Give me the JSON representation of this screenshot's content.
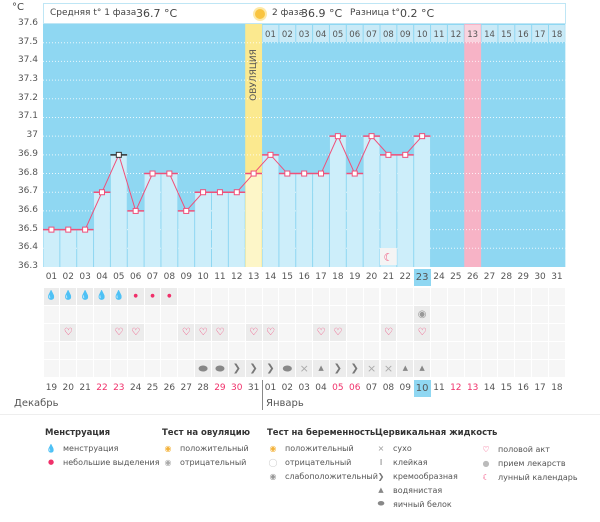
{
  "header": {
    "phase1_label": "Средняя t° 1 фаза",
    "phase1_value": "36.7 °C",
    "phase2_label": "2 фаза",
    "phase2_value": "36.9 °C",
    "diff_label": "Разница t°",
    "diff_value": "0.2 °C",
    "unit": "°C",
    "ovulation_label": "ОВУЛЯЦИЯ"
  },
  "colors": {
    "bg": "#8fd7f2",
    "bar": "#cdeefa",
    "line": "#f0507a",
    "ovulation": "#fbe98f",
    "ovulation_bar": "#fdf6c8",
    "next_cycle": "#f7b3c6",
    "weekend": "#f0306a"
  },
  "chart_data": {
    "type": "line",
    "title": "",
    "ylabel": "°C",
    "ylim": [
      36.3,
      37.6
    ],
    "yticks": [
      "37.6",
      "37.5",
      "37.4",
      "37.3",
      "37.2",
      "37.1",
      "37",
      "36.9",
      "36.8",
      "36.7",
      "36.6",
      "36.5",
      "36.4",
      "36.3"
    ],
    "cycle_days": [
      "01",
      "02",
      "03",
      "04",
      "05",
      "06",
      "07",
      "08",
      "09",
      "10",
      "11",
      "12",
      "13",
      "14",
      "15",
      "16",
      "17",
      "18",
      "19",
      "20",
      "21",
      "22",
      "23",
      "24",
      "25",
      "26",
      "27",
      "28",
      "29",
      "30",
      "31"
    ],
    "values": [
      36.5,
      36.5,
      36.5,
      36.7,
      36.9,
      36.6,
      36.8,
      36.8,
      36.6,
      36.7,
      36.7,
      36.7,
      36.8,
      36.9,
      36.8,
      36.8,
      36.8,
      37.0,
      36.8,
      37.0,
      36.9,
      36.9,
      37.0,
      null,
      null,
      null,
      null,
      null,
      null,
      null,
      null
    ],
    "selected_day": 5,
    "ovulation_day": 13,
    "today_day": 23,
    "moon_day": 21,
    "next_cycle_days": [
      "01",
      "02",
      "03",
      "04",
      "05",
      "06",
      "07",
      "08",
      "09",
      "10",
      "11",
      "12",
      "13",
      "14",
      "15",
      "16",
      "17",
      "18"
    ],
    "next_cycle_start_day": 14,
    "next_period_day": 26
  },
  "rows": {
    "menstruation": [
      "heavy",
      "heavy",
      "heavy",
      "heavy",
      "heavy",
      "light",
      "light",
      "light",
      null,
      null,
      null,
      null,
      null,
      null,
      null,
      null,
      null,
      null,
      null,
      null,
      null,
      null,
      null,
      null,
      null,
      null,
      null,
      null,
      null,
      null,
      null
    ],
    "tests": {
      "23": "pregnancy-weak"
    },
    "intercourse": [
      2,
      5,
      6,
      9,
      10,
      11,
      13,
      14,
      17,
      18,
      21,
      23
    ],
    "fluid": {
      "10": "egg",
      "11": "egg",
      "12": "creamy",
      "13": "creamy",
      "14": "creamy",
      "15": "egg",
      "16": "dry",
      "17": "watery",
      "18": "creamy",
      "19": "creamy",
      "20": "dry",
      "21": "dry",
      "22": "watery",
      "23": "watery"
    }
  },
  "dates": {
    "labels": [
      "19",
      "20",
      "21",
      "22",
      "23",
      "24",
      "25",
      "26",
      "27",
      "28",
      "29",
      "30",
      "31",
      "01",
      "02",
      "03",
      "04",
      "05",
      "06",
      "07",
      "08",
      "09",
      "10",
      "11",
      "12",
      "13",
      "14",
      "15",
      "16",
      "17",
      "18"
    ],
    "weekend": [
      4,
      5,
      11,
      12,
      18,
      19,
      25,
      26
    ],
    "today": 23,
    "months": [
      "Декабрь",
      "Январь"
    ]
  },
  "legend": {
    "menstruation": {
      "title": "Менструация",
      "items": [
        "менструация",
        "небольшие выделения"
      ]
    },
    "ovulation_test": {
      "title": "Тест на овуляцию",
      "items": [
        "положительный",
        "отрицательный"
      ]
    },
    "pregnancy_test": {
      "title": "Тест на беременность",
      "items": [
        "положительный",
        "отрицательный",
        "слабоположительный"
      ]
    },
    "cervical": {
      "title": "Цервикальная жидкость",
      "items": [
        "сухо",
        "клейкая",
        "кремообразная",
        "водянистая",
        "яичный белок"
      ]
    },
    "other": {
      "items": [
        "половой акт",
        "прием лекарств",
        "лунный календарь"
      ]
    }
  }
}
